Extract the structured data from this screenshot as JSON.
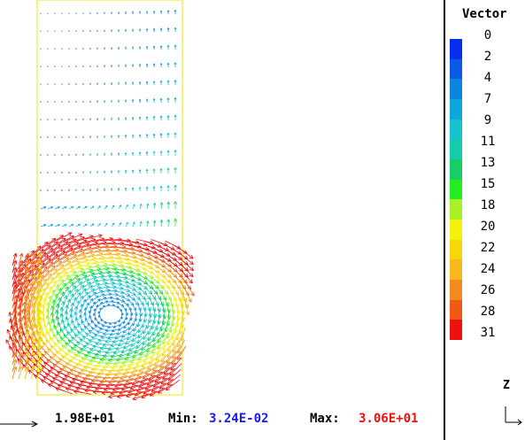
{
  "legend": {
    "title": "Vector",
    "ticks": [
      "0",
      "2",
      "4",
      "7",
      "9",
      "11",
      "13",
      "15",
      "18",
      "20",
      "22",
      "24",
      "26",
      "28",
      "31"
    ],
    "colors": [
      "#0a2ef0",
      "#0a5ae6",
      "#0b86de",
      "#0ea6dc",
      "#16c2cc",
      "#14ccaa",
      "#18cc66",
      "#22ee22",
      "#a8f028",
      "#f2f20a",
      "#f6d80a",
      "#f6b81a",
      "#f28a1c",
      "#f05a14",
      "#f01010"
    ]
  },
  "status": {
    "reference_value": "1.98E+01",
    "min_label": "Min:",
    "min_value": "3.24E-02",
    "max_label": "Max:",
    "max_value": "3.06E+01"
  },
  "axis": {
    "label": "Z"
  },
  "colors": {
    "min": "#1a1aee",
    "max": "#ee1111",
    "boundary": "#e8e800"
  }
}
